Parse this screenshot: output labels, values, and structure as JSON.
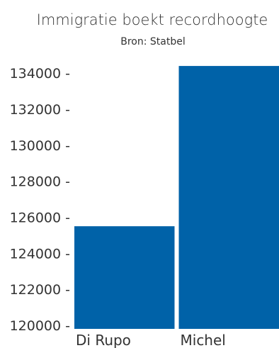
{
  "chart_data": {
    "type": "bar",
    "title": "Immigratie boekt recordhoogte",
    "subtitle": "Bron: Statbel",
    "categories": [
      "Di Rupo",
      "Michel"
    ],
    "values": [
      125500,
      134400
    ],
    "ylim": [
      119800,
      134600
    ],
    "yticks": [
      {
        "value": 120000,
        "label": "120000 -"
      },
      {
        "value": 122000,
        "label": "122000 -"
      },
      {
        "value": 124000,
        "label": "124000 -"
      },
      {
        "value": 126000,
        "label": "126000 -"
      },
      {
        "value": 128000,
        "label": "128000 -"
      },
      {
        "value": 130000,
        "label": "130000 -"
      },
      {
        "value": 132000,
        "label": "132000 -"
      },
      {
        "value": 134000,
        "label": "134000 -"
      }
    ],
    "bar_color": "#0062a8",
    "grid": false,
    "legend": "none"
  }
}
